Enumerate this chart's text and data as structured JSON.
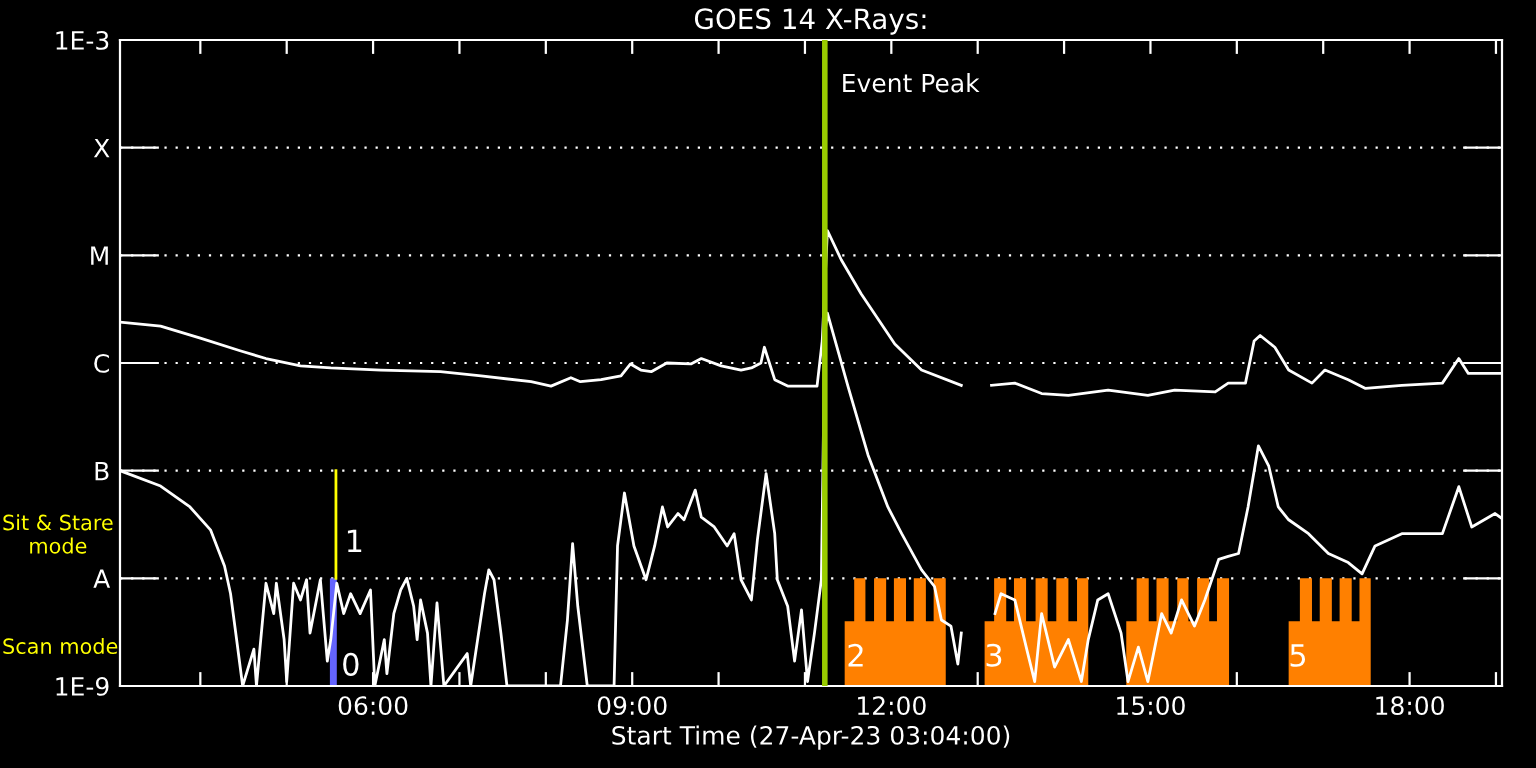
{
  "chart_data": {
    "type": "line",
    "title": "GOES 14 X-Rays:",
    "xlabel": "Start Time (27-Apr-23 03:04:00)",
    "log": "y",
    "grid": "y",
    "xlim": [
      3.07,
      19.07
    ],
    "xticks": [
      {
        "value": 4,
        "label": null
      },
      {
        "value": 5,
        "label": null
      },
      {
        "value": 6,
        "label": "06:00"
      },
      {
        "value": 7,
        "label": null
      },
      {
        "value": 8,
        "label": null
      },
      {
        "value": 9,
        "label": "09:00"
      },
      {
        "value": 10,
        "label": null
      },
      {
        "value": 11,
        "label": null
      },
      {
        "value": 12,
        "label": "12:00"
      },
      {
        "value": 13,
        "label": null
      },
      {
        "value": 14,
        "label": null
      },
      {
        "value": 15,
        "label": "15:00"
      },
      {
        "value": 16,
        "label": null
      },
      {
        "value": 17,
        "label": null
      },
      {
        "value": 18,
        "label": "18:00"
      },
      {
        "value": 19,
        "label": null
      }
    ],
    "ylim": [
      1e-09,
      0.001
    ],
    "yticks": [
      {
        "value": 1e-09,
        "label": "1E-9"
      },
      {
        "value": 1e-08,
        "label": "A"
      },
      {
        "value": 1e-07,
        "label": "B"
      },
      {
        "value": 1e-06,
        "label": "C"
      },
      {
        "value": 1e-05,
        "label": "M"
      },
      {
        "value": 0.0001,
        "label": "X"
      },
      {
        "value": 0.001,
        "label": "1E-3"
      }
    ],
    "ref_lines": [
      {
        "axis": "x",
        "value": 11.23,
        "label": "Event Peak",
        "color": "#99cc00"
      }
    ],
    "annotations": [
      "Sit & Stare\nmode",
      "Scan mode",
      {
        "text": "0",
        "x": 5.63,
        "y": 1.5e-09
      },
      {
        "text": "1",
        "x": 5.67,
        "y": 2.1e-08
      },
      "2",
      "3",
      "5"
    ],
    "series": [
      {
        "type": "area",
        "color": "#ff8000",
        "x": [
          11.46,
          11.57,
          11.57,
          11.7,
          11.7,
          11.8,
          11.8,
          11.94,
          11.94,
          12.03,
          12.03,
          12.17,
          12.17,
          12.26,
          12.26,
          12.4,
          12.4,
          12.49,
          12.49,
          12.63
        ],
        "values": [
          4e-09,
          4e-09,
          1e-08,
          1e-08,
          4e-09,
          4e-09,
          1e-08,
          1e-08,
          4e-09,
          4e-09,
          1e-08,
          1e-08,
          4e-09,
          4e-09,
          1e-08,
          1e-08,
          4e-09,
          4e-09,
          1e-08,
          1e-08
        ]
      },
      {
        "type": "area",
        "color": "#ff8000",
        "x": [
          13.08,
          13.19,
          13.19,
          13.33,
          13.33,
          13.42,
          13.42,
          13.56,
          13.56,
          13.67,
          13.67,
          13.81,
          13.81,
          13.91,
          13.91,
          14.05,
          14.05,
          14.15,
          14.15,
          14.28
        ],
        "values": [
          4e-09,
          4e-09,
          1e-08,
          1e-08,
          4e-09,
          4e-09,
          1e-08,
          1e-08,
          4e-09,
          4e-09,
          1e-08,
          1e-08,
          4e-09,
          4e-09,
          1e-08,
          1e-08,
          4e-09,
          4e-09,
          1e-08,
          1e-08
        ]
      },
      {
        "type": "area",
        "color": "#ff8000",
        "x": [
          14.72,
          14.84,
          14.84,
          14.98,
          14.98,
          15.07,
          15.07,
          15.21,
          15.21,
          15.31,
          15.31,
          15.44,
          15.44,
          15.54,
          15.54,
          15.68,
          15.68,
          15.77,
          15.77,
          15.91
        ],
        "values": [
          4e-09,
          4e-09,
          1e-08,
          1e-08,
          4e-09,
          4e-09,
          1e-08,
          1e-08,
          4e-09,
          4e-09,
          1e-08,
          1e-08,
          4e-09,
          4e-09,
          1e-08,
          1e-08,
          4e-09,
          4e-09,
          1e-08,
          1e-08
        ]
      },
      {
        "type": "area",
        "color": "#ff8000",
        "x": [
          16.6,
          16.73,
          16.73,
          16.87,
          16.87,
          16.96,
          16.96,
          17.1,
          17.1,
          17.19,
          17.19,
          17.33,
          17.33,
          17.42,
          17.42,
          17.55
        ],
        "values": [
          4e-09,
          4e-09,
          1e-08,
          1e-08,
          4e-09,
          4e-09,
          1e-08,
          1e-08,
          4e-09,
          4e-09,
          1e-08,
          1e-08,
          4e-09,
          4e-09,
          1e-08,
          1e-08
        ]
      },
      {
        "type": "area",
        "color": "#6464ff",
        "x": [
          5.5,
          5.58
        ],
        "values": [
          1e-08,
          1e-08
        ]
      },
      {
        "type": "line",
        "color": "#ffff00",
        "x": [
          5.57,
          5.57
        ],
        "values": [
          1e-08,
          1e-07
        ]
      },
      {
        "color": "#ffffff",
        "x": [
          3.07,
          3.54,
          4.0,
          4.46,
          4.76,
          5.16,
          5.51,
          6.09,
          6.78,
          7.25,
          7.83,
          8.06,
          8.29,
          8.4,
          8.64,
          8.87,
          8.98,
          9.1,
          9.22,
          9.4,
          9.68,
          9.8,
          10.03,
          10.26,
          10.38,
          10.49,
          10.53,
          10.65,
          10.8,
          11.14,
          11.2,
          11.26,
          11.42,
          11.65,
          12.04,
          12.35,
          12.81,
          12.9,
          13.16,
          13.43,
          13.74,
          14.05,
          14.51,
          14.97,
          15.28,
          15.75,
          15.9,
          16.1,
          16.2,
          16.27,
          16.44,
          16.6,
          16.87,
          17.02,
          17.29,
          17.49,
          17.91,
          18.38,
          18.57,
          18.68,
          19.07
        ],
        "values": [
          2.4e-06,
          2.2e-06,
          1.7e-06,
          1.3e-06,
          1.1e-06,
          9.4e-07,
          9e-07,
          8.6e-07,
          8.3e-07,
          7.6e-07,
          6.7e-07,
          6.1e-07,
          7.3e-07,
          6.7e-07,
          7e-07,
          7.6e-07,
          9.8e-07,
          8.6e-07,
          8.3e-07,
          1e-06,
          9.8e-07,
          1.1e-06,
          9.4e-07,
          8.6e-07,
          9e-07,
          1e-06,
          1.4e-06,
          7e-07,
          6.1e-07,
          6.1e-07,
          1.6e-06,
          1.7e-05,
          9.1e-06,
          4.4e-06,
          1.5e-06,
          8.6e-07,
          6.2e-07,
          null,
          6.2e-07,
          6.5e-07,
          5.2e-07,
          5e-07,
          5.6e-07,
          5e-07,
          5.6e-07,
          5.4e-07,
          6.5e-07,
          6.5e-07,
          1.6e-06,
          1.8e-06,
          1.4e-06,
          8.6e-07,
          6.5e-07,
          8.6e-07,
          7e-07,
          5.8e-07,
          6.2e-07,
          6.5e-07,
          1.1e-06,
          8e-07,
          8e-07
        ]
      },
      {
        "color": "#ffffff",
        "x": [
          3.07,
          3.54,
          3.88,
          4.12,
          4.28,
          4.35,
          4.42,
          4.49,
          4.62,
          4.65,
          4.76,
          4.85,
          4.88,
          4.97,
          5.0,
          5.08,
          5.16,
          5.23,
          5.27,
          5.39,
          5.47,
          5.51,
          5.58,
          5.66,
          5.74,
          5.85,
          5.97,
          6.02,
          6.13,
          6.16,
          6.24,
          6.32,
          6.39,
          6.47,
          6.51,
          6.55,
          6.63,
          6.67,
          6.74,
          6.82,
          7.09,
          7.13,
          7.29,
          7.34,
          7.4,
          7.48,
          7.55,
          8.17,
          8.25,
          8.31,
          8.37,
          8.48,
          8.79,
          8.83,
          8.91,
          9.02,
          9.16,
          9.26,
          9.35,
          9.41,
          9.53,
          9.6,
          9.73,
          9.8,
          9.95,
          10.1,
          10.18,
          10.26,
          10.38,
          10.45,
          10.55,
          10.65,
          10.68,
          10.8,
          10.88,
          10.96,
          11.03,
          11.11,
          11.19,
          11.23,
          11.26,
          11.5,
          11.73,
          11.96,
          12.12,
          12.35,
          12.5,
          12.58,
          12.69,
          12.77,
          12.81,
          12.9,
          13.2,
          13.27,
          13.43,
          13.58,
          13.66,
          13.74,
          13.89,
          14.05,
          14.2,
          14.28,
          14.39,
          14.51,
          14.66,
          14.74,
          14.86,
          14.97,
          15.13,
          15.24,
          15.36,
          15.51,
          15.63,
          15.79,
          15.9,
          16.02,
          16.13,
          16.25,
          16.37,
          16.48,
          16.6,
          16.83,
          17.06,
          17.29,
          17.45,
          17.6,
          17.91,
          18.38,
          18.57,
          18.72,
          18.99,
          19.07
        ],
        "values": [
          1e-07,
          7.2e-08,
          4.6e-08,
          2.8e-08,
          1.3e-08,
          7.2e-09,
          2.7e-09,
          1e-09,
          2.2e-09,
          1e-09,
          9e-09,
          4.7e-09,
          9e-09,
          2.7e-09,
          1.1e-09,
          9e-09,
          6.3e-09,
          9.7e-09,
          3.1e-09,
          9.7e-09,
          1.7e-09,
          2.7e-09,
          9e-09,
          4.7e-09,
          7.2e-09,
          4.7e-09,
          7.8e-09,
          1e-09,
          2.7e-09,
          1.3e-09,
          4.7e-09,
          7.8e-09,
          1e-08,
          5.5e-09,
          2.7e-09,
          6.3e-09,
          3.1e-09,
          1e-09,
          5.9e-09,
          1e-09,
          2e-09,
          1e-09,
          7.2e-09,
          1.2e-08,
          9.7e-09,
          3.1e-09,
          1e-09,
          1e-09,
          4.1e-09,
          2.1e-08,
          5.5e-09,
          1e-09,
          1e-09,
          2e-08,
          6.2e-08,
          2e-08,
          9.7e-09,
          2e-08,
          4.6e-08,
          3e-08,
          4e-08,
          3.5e-08,
          6.6e-08,
          3.7e-08,
          3e-08,
          2e-08,
          2.6e-08,
          9.7e-09,
          6.3e-09,
          2.3e-08,
          9.4e-08,
          2.6e-08,
          9.7e-09,
          5.5e-09,
          1.7e-09,
          5.1e-09,
          1.1e-09,
          3.1e-09,
          9.7e-09,
          1.9e-06,
          2.9e-06,
          6e-07,
          1.4e-07,
          4.6e-08,
          2.6e-08,
          1.2e-08,
          8.4e-09,
          4.1e-09,
          3.6e-09,
          1.6e-09,
          3.1e-09,
          null,
          4.7e-09,
          7.2e-09,
          6.3e-09,
          2e-09,
          1.1e-09,
          4.7e-09,
          1.5e-09,
          2.7e-09,
          1.1e-09,
          2.7e-09,
          6.3e-09,
          7.2e-09,
          3.1e-09,
          1.1e-09,
          2.3e-09,
          1.1e-09,
          4.7e-09,
          3.1e-09,
          6.3e-09,
          3.6e-09,
          6.3e-09,
          1.5e-08,
          1.6e-08,
          1.7e-08,
          4.6e-08,
          1.7e-07,
          1.1e-07,
          4.6e-08,
          3.5e-08,
          2.6e-08,
          1.7e-08,
          1.4e-08,
          1.1e-08,
          2e-08,
          2.6e-08,
          2.6e-08,
          7.1e-08,
          3e-08,
          4e-08,
          3.6e-08
        ]
      }
    ]
  }
}
